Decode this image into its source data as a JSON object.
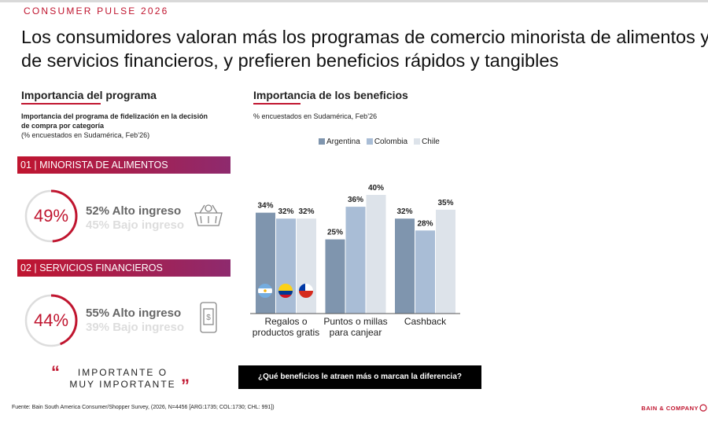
{
  "header": {
    "kicker": "CONSUMER PULSE 2026",
    "title": "Los consumidores valoran más los programas de comercio minorista de alimentos y de servicios financieros, y prefieren beneficios rápidos y tangibles"
  },
  "program": {
    "heading": "Importancia del programa",
    "subtitle": "Importancia del programa de fidelización en la decisión de compra por categoría",
    "note": "(% encuestados en Sudamérica, Feb’26)",
    "categories": [
      {
        "label": "01 | MINORISTA DE ALIMENTOS",
        "value": 49,
        "value_label": "49%",
        "high": "52% Alto ingreso",
        "low": "45% Bajo ingreso"
      },
      {
        "label": "02 | SERVICIOS FINANCIEROS",
        "value": 44,
        "value_label": "44%",
        "high": "55% Alto ingreso",
        "low": "39% Bajo ingreso"
      }
    ],
    "legend": "IMPORTANTE O MUY IMPORTANTE"
  },
  "chart_data": {
    "type": "bar",
    "title": "Importancia de los beneficios",
    "subtitle": "% encuestados en Sudamérica, Feb’26",
    "categories": [
      "Regalos o productos gratis",
      "Puntos o millas para canjear",
      "Cashback"
    ],
    "series": [
      {
        "name": "Argentina",
        "color": "#7f95ae",
        "values": [
          34,
          25,
          32
        ],
        "value_labels": [
          "34%",
          "25%",
          "32%"
        ]
      },
      {
        "name": "Colombia",
        "color": "#a9bdd6",
        "values": [
          32,
          36,
          28
        ],
        "value_labels": [
          "32%",
          "36%",
          "28%"
        ]
      },
      {
        "name": "Chile",
        "color": "#dde3ea",
        "values": [
          32,
          40,
          35
        ],
        "value_labels": [
          "32%",
          "40%",
          "35%"
        ]
      }
    ],
    "grid": false
  },
  "question": "¿Qué beneficios le atraen más o marcan la diferencia?",
  "footer": {
    "source": "Fuente: Bain South America Consumer/Shopper Survey, (2026, N=4456 [ARG:1735; COL:1730; CHL: 991])",
    "brand": "BAIN & COMPANY"
  }
}
